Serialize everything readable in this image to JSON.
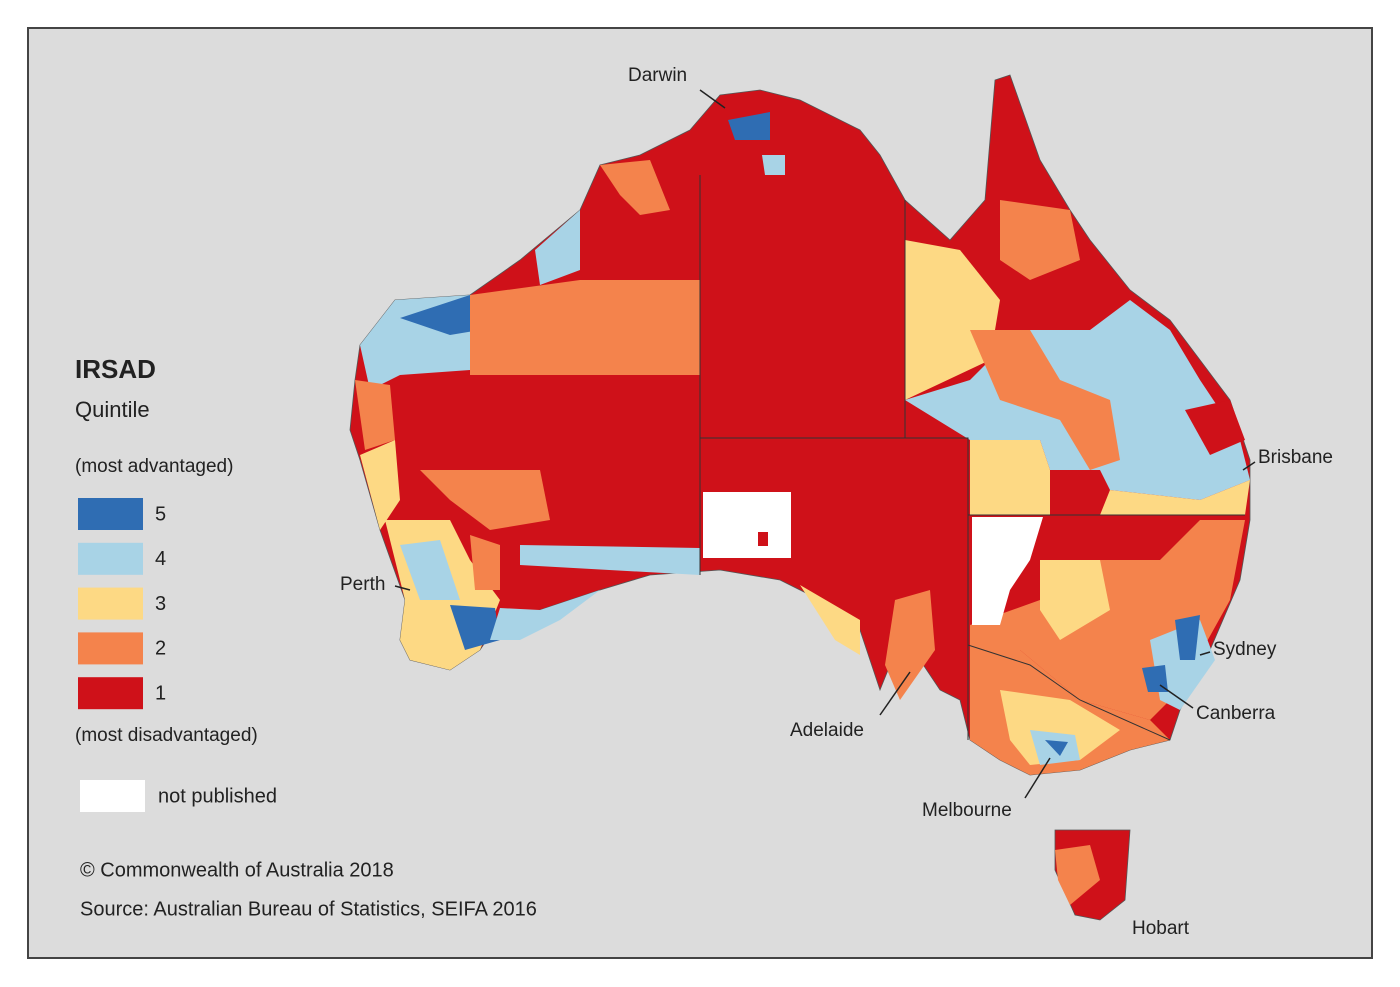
{
  "legend": {
    "title": "IRSAD",
    "subtitle": "Quintile",
    "top_note": "(most advantaged)",
    "items": [
      {
        "label": "5",
        "color": "#2f6db3"
      },
      {
        "label": "4",
        "color": "#a8d3e6"
      },
      {
        "label": "3",
        "color": "#fdd984"
      },
      {
        "label": "2",
        "color": "#f4834c"
      },
      {
        "label": "1",
        "color": "#cf1119"
      }
    ],
    "bottom_note": "(most disadvantaged)",
    "not_published": {
      "label": "not published",
      "color": "#ffffff"
    }
  },
  "cities": [
    {
      "label": "Darwin"
    },
    {
      "label": "Brisbane"
    },
    {
      "label": "Perth"
    },
    {
      "label": "Sydney"
    },
    {
      "label": "Canberra"
    },
    {
      "label": "Adelaide"
    },
    {
      "label": "Melbourne"
    },
    {
      "label": "Hobart"
    }
  ],
  "credits": {
    "copyright": "© Commonwealth of Australia 2018",
    "source": "Source: Australian Bureau of Statistics, SEIFA 2016"
  }
}
